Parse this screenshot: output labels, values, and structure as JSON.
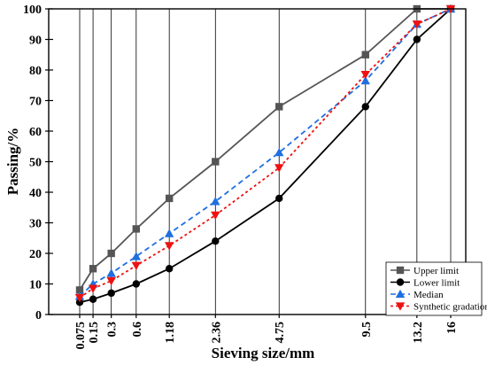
{
  "chart_data": {
    "type": "line",
    "xlabel": "Sieving size/mm",
    "ylabel": "Passing/%",
    "ylim": [
      0,
      100
    ],
    "y_ticks": [
      0,
      10,
      20,
      30,
      40,
      50,
      60,
      70,
      80,
      90,
      100
    ],
    "x_scale": "power-0.45",
    "x_ticks": [
      "0.075",
      "0.15",
      "0.3",
      "0.6",
      "1.18",
      "2.36",
      "4.75",
      "9.5",
      "13.2",
      "16"
    ],
    "x": [
      0.075,
      0.15,
      0.3,
      0.6,
      1.18,
      2.36,
      4.75,
      9.5,
      13.2,
      16
    ],
    "grid": "vertical",
    "legend_position": "bottom-right",
    "series": [
      {
        "name": "Upper limit",
        "color": "#555555",
        "marker": "square",
        "dash": "solid",
        "values": [
          8,
          15,
          20,
          28,
          38,
          50,
          68,
          85,
          100,
          100
        ]
      },
      {
        "name": "Lower limit",
        "color": "#000000",
        "marker": "circle",
        "dash": "solid",
        "values": [
          4,
          5,
          7,
          10,
          15,
          24,
          38,
          68,
          90,
          100
        ]
      },
      {
        "name": "Median",
        "color": "#1f6fe0",
        "marker": "triangle-up",
        "dash": "dashed",
        "values": [
          6,
          10,
          13.5,
          19,
          26.5,
          37,
          53,
          76.5,
          95,
          100
        ]
      },
      {
        "name": "Synthetic gradation",
        "color": "#ee1111",
        "marker": "triangle-down",
        "dash": "dotted",
        "values": [
          5.5,
          8.5,
          11,
          16,
          22.5,
          32.5,
          48,
          78.5,
          95,
          100
        ]
      }
    ]
  }
}
